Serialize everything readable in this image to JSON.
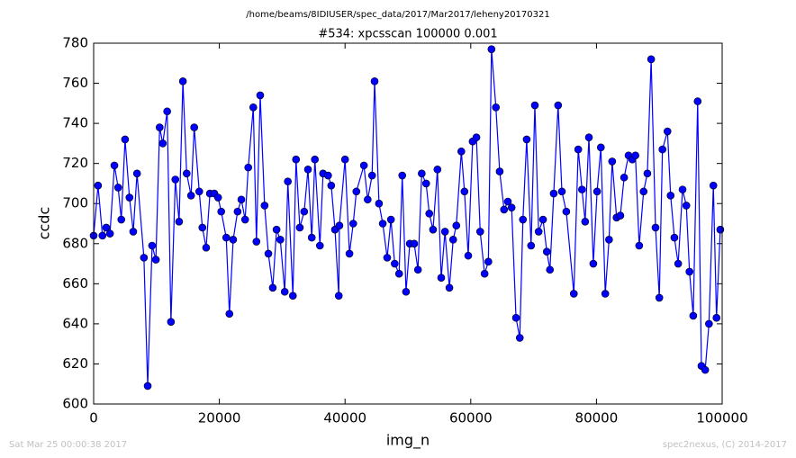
{
  "chart_data": {
    "type": "line",
    "suptitle": "/home/beams/8IDIUSER/spec_data/2017/Mar2017/leheny20170321",
    "title": "#534: xpcsscan 100000 0.001",
    "xlabel": "img_n",
    "ylabel": "ccdc",
    "footer_left": "Sat Mar 25 00:00:38 2017",
    "footer_right": "spec2nexus, (C) 2014-2017",
    "xlim": [
      0,
      100000
    ],
    "ylim": [
      600,
      780
    ],
    "xticks": [
      0,
      20000,
      40000,
      60000,
      80000,
      100000
    ],
    "yticks": [
      600,
      620,
      640,
      660,
      680,
      700,
      720,
      740,
      760,
      780
    ],
    "x": [
      0,
      700,
      1400,
      2000,
      2600,
      3300,
      3900,
      4400,
      5000,
      5700,
      6300,
      6900,
      8000,
      8600,
      9300,
      9900,
      10500,
      11000,
      11700,
      12300,
      13000,
      13600,
      14200,
      14800,
      15500,
      16000,
      16800,
      17300,
      17900,
      18500,
      19200,
      19800,
      20300,
      21100,
      21600,
      22200,
      22900,
      23500,
      24100,
      24600,
      25400,
      25900,
      26500,
      27200,
      27800,
      28500,
      29100,
      29700,
      30400,
      30900,
      31700,
      32200,
      32800,
      33500,
      34100,
      34700,
      35200,
      36000,
      36500,
      37300,
      37800,
      38400,
      39000,
      39100,
      40000,
      40700,
      41300,
      41800,
      43000,
      43600,
      44300,
      44700,
      45400,
      46000,
      46700,
      47300,
      47900,
      48600,
      49100,
      49700,
      50300,
      51000,
      51600,
      52200,
      52900,
      53400,
      54000,
      54700,
      55300,
      55900,
      56600,
      57200,
      57700,
      58500,
      59000,
      59600,
      60300,
      60900,
      61500,
      62200,
      62800,
      63300,
      64000,
      64600,
      65300,
      65900,
      66500,
      67200,
      67800,
      68300,
      68900,
      69600,
      70200,
      70800,
      71500,
      72100,
      72600,
      73200,
      73900,
      74500,
      75200,
      76400,
      77100,
      77700,
      78200,
      78800,
      79500,
      80100,
      80700,
      81400,
      82000,
      82500,
      83200,
      83800,
      84400,
      85100,
      85700,
      86200,
      86800,
      87500,
      88100,
      88700,
      89400,
      90000,
      90500,
      91300,
      91800,
      92400,
      93000,
      93700,
      94300,
      94800,
      95400,
      96100,
      96700,
      97300,
      97900,
      98600,
      99100,
      99700
    ],
    "series": [
      {
        "name": "ccdc",
        "color": "#0000ff",
        "values": [
          684,
          709,
          684,
          688,
          685,
          719,
          708,
          692,
          732,
          703,
          686,
          715,
          673,
          609,
          679,
          672,
          738,
          730,
          746,
          641,
          712,
          691,
          761,
          715,
          704,
          738,
          706,
          688,
          678,
          705,
          705,
          703,
          696,
          683,
          645,
          682,
          696,
          702,
          692,
          718,
          748,
          681,
          754,
          699,
          675,
          658,
          687,
          682,
          656,
          711,
          654,
          722,
          688,
          696,
          717,
          683,
          722,
          679,
          715,
          714,
          709,
          687,
          654,
          689,
          722,
          675,
          690,
          706,
          719,
          702,
          714,
          761,
          700,
          690,
          673,
          692,
          670,
          665,
          714,
          656,
          680,
          680,
          667,
          715,
          710,
          695,
          687,
          717,
          663,
          686,
          658,
          682,
          689,
          726,
          706,
          674,
          731,
          733,
          686,
          665,
          671,
          777,
          748,
          716,
          697,
          701,
          698,
          643,
          633,
          692,
          732,
          679,
          749,
          686,
          692,
          676,
          667,
          705,
          749,
          706,
          696,
          655,
          727,
          707,
          691,
          733,
          670,
          706,
          728,
          655,
          682,
          721,
          693,
          694,
          713,
          724,
          722,
          724,
          679,
          706,
          715,
          772,
          688,
          653,
          727,
          736,
          704,
          683,
          670,
          707,
          699,
          666,
          644,
          751,
          619,
          617,
          640,
          709,
          643,
          687
        ]
      }
    ]
  }
}
